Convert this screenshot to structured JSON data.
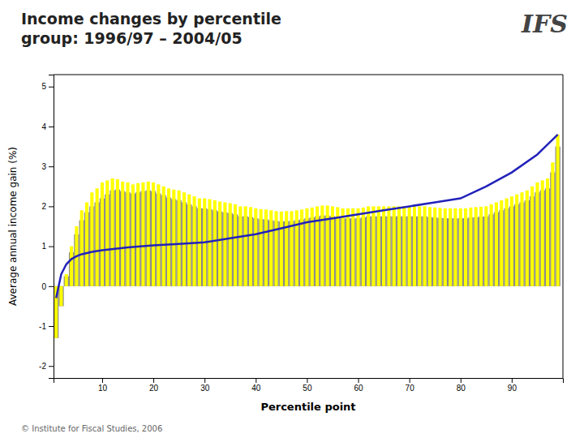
{
  "chart_data": {
    "type": "bar",
    "title": [
      "Income changes by percentile",
      "group: 1996/97 – 2004/05"
    ],
    "annotations": [
      "IFS",
      "© Institute for Fiscal Studies, 2006"
    ],
    "x_label": "Percentile point",
    "y_label": "Average annual income gain (%)",
    "x": [
      1,
      2,
      3,
      4,
      5,
      6,
      7,
      8,
      9,
      10,
      11,
      12,
      13,
      14,
      15,
      16,
      17,
      18,
      19,
      20,
      21,
      22,
      23,
      24,
      25,
      26,
      27,
      28,
      29,
      30,
      31,
      32,
      33,
      34,
      35,
      36,
      37,
      38,
      39,
      40,
      41,
      42,
      43,
      44,
      45,
      46,
      47,
      48,
      49,
      50,
      51,
      52,
      53,
      54,
      55,
      56,
      57,
      58,
      59,
      60,
      61,
      62,
      63,
      64,
      65,
      66,
      67,
      68,
      69,
      70,
      71,
      72,
      73,
      74,
      75,
      76,
      77,
      78,
      79,
      80,
      81,
      82,
      83,
      84,
      85,
      86,
      87,
      88,
      89,
      90,
      91,
      92,
      93,
      94,
      95,
      96,
      97,
      98,
      99
    ],
    "series": [
      {
        "type": "bar",
        "color": "#888888",
        "values": [
          -1.3,
          -0.5,
          0.25,
          0.85,
          1.3,
          1.65,
          1.85,
          2.0,
          2.1,
          2.2,
          2.3,
          2.4,
          2.42,
          2.38,
          2.35,
          2.32,
          2.35,
          2.38,
          2.4,
          2.38,
          2.32,
          2.28,
          2.22,
          2.18,
          2.15,
          2.1,
          2.05,
          2.0,
          1.95,
          1.95,
          1.93,
          1.9,
          1.87,
          1.85,
          1.83,
          1.8,
          1.75,
          1.75,
          1.73,
          1.7,
          1.68,
          1.67,
          1.65,
          1.63,
          1.62,
          1.63,
          1.63,
          1.65,
          1.67,
          1.7,
          1.72,
          1.75,
          1.77,
          1.77,
          1.75,
          1.73,
          1.7,
          1.7,
          1.7,
          1.7,
          1.72,
          1.75,
          1.75,
          1.75,
          1.75,
          1.75,
          1.75,
          1.75,
          1.75,
          1.75,
          1.75,
          1.75,
          1.75,
          1.73,
          1.72,
          1.71,
          1.7,
          1.7,
          1.7,
          1.7,
          1.7,
          1.72,
          1.73,
          1.74,
          1.75,
          1.8,
          1.85,
          1.9,
          1.95,
          2.0,
          2.05,
          2.1,
          2.15,
          2.25,
          2.35,
          2.4,
          2.45,
          2.85,
          3.5
        ]
      },
      {
        "type": "bar",
        "color": "#FFFF00",
        "values": [
          -1.3,
          -0.5,
          0.3,
          1.0,
          1.5,
          1.9,
          2.1,
          2.35,
          2.45,
          2.6,
          2.65,
          2.7,
          2.68,
          2.62,
          2.6,
          2.55,
          2.58,
          2.6,
          2.62,
          2.6,
          2.55,
          2.5,
          2.45,
          2.42,
          2.4,
          2.35,
          2.3,
          2.25,
          2.2,
          2.2,
          2.18,
          2.15,
          2.12,
          2.1,
          2.08,
          2.05,
          2.0,
          2.0,
          1.98,
          1.95,
          1.93,
          1.92,
          1.9,
          1.88,
          1.87,
          1.88,
          1.88,
          1.9,
          1.92,
          1.95,
          1.97,
          2.0,
          2.02,
          2.02,
          2.0,
          1.98,
          1.95,
          1.95,
          1.95,
          1.95,
          1.97,
          2.0,
          2.0,
          2.0,
          2.0,
          2.0,
          2.0,
          2.0,
          2.0,
          2.0,
          2.0,
          2.0,
          2.0,
          1.98,
          1.97,
          1.96,
          1.95,
          1.95,
          1.95,
          1.95,
          1.95,
          1.97,
          1.98,
          1.99,
          2.0,
          2.05,
          2.1,
          2.15,
          2.2,
          2.25,
          2.3,
          2.35,
          2.4,
          2.5,
          2.6,
          2.65,
          2.7,
          3.1,
          3.8
        ]
      },
      {
        "type": "line",
        "color": "#2222bb",
        "x": [
          1,
          2,
          3,
          4,
          5,
          6,
          7,
          8,
          9,
          10,
          15,
          20,
          25,
          30,
          35,
          40,
          45,
          50,
          55,
          60,
          65,
          70,
          75,
          80,
          85,
          90,
          95,
          97,
          99
        ],
        "values": [
          -0.3,
          0.3,
          0.55,
          0.68,
          0.75,
          0.8,
          0.83,
          0.86,
          0.88,
          0.9,
          0.97,
          1.02,
          1.06,
          1.1,
          1.2,
          1.3,
          1.45,
          1.6,
          1.7,
          1.8,
          1.9,
          2.0,
          2.1,
          2.2,
          2.5,
          2.85,
          3.3,
          3.55,
          3.8
        ]
      }
    ],
    "xlim": [
      0.5,
      100
    ],
    "xticks": [
      10,
      20,
      30,
      40,
      50,
      60,
      70,
      80,
      90
    ],
    "ylim": [
      -2.3,
      5.3
    ],
    "yticks": [
      -2,
      -1,
      0,
      1,
      2,
      3,
      4,
      5
    ],
    "grid": false
  }
}
